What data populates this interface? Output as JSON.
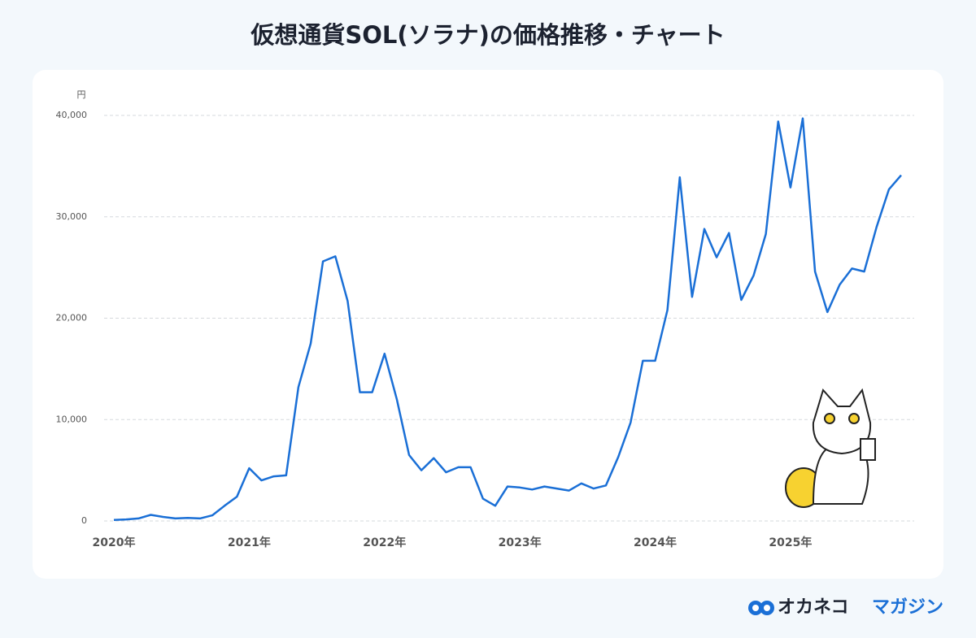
{
  "chart_data": {
    "type": "line",
    "title": "仮想通貨SOL(ソラナ)の価格推移・チャート",
    "y_unit": "円",
    "categories": [
      "2020年",
      null,
      null,
      null,
      null,
      null,
      null,
      null,
      null,
      null,
      null,
      "2021年",
      null,
      null,
      null,
      null,
      null,
      null,
      null,
      null,
      null,
      null,
      "2022年",
      null,
      null,
      null,
      null,
      null,
      null,
      null,
      null,
      null,
      null,
      "2023年",
      null,
      null,
      null,
      null,
      null,
      null,
      null,
      null,
      null,
      null,
      "2024年",
      null,
      null,
      null,
      null,
      null,
      null,
      null,
      null,
      null,
      null,
      "2025年",
      null,
      null,
      null,
      null,
      null,
      null,
      null,
      null,
      null
    ],
    "series": [
      {
        "name": "SOL",
        "color": "#1a6fd6",
        "values": [
          100,
          150,
          250,
          600,
          400,
          250,
          300,
          250,
          550,
          1500,
          2400,
          5200,
          4000,
          4400,
          4500,
          13200,
          17500,
          25600,
          26100,
          21700,
          12700,
          12700,
          16500,
          12000,
          6500,
          5000,
          6200,
          4800,
          5300,
          5300,
          2200,
          1500,
          3400,
          3300,
          3100,
          3400,
          3200,
          3000,
          3700,
          3200,
          3500,
          6300,
          9700,
          15800,
          15800,
          20800,
          33900,
          22100,
          28800,
          26000,
          28400,
          21800,
          24200,
          28300,
          39400,
          32900,
          39700,
          24600,
          20600,
          23300,
          24900,
          24600,
          29000,
          32700,
          34100
        ]
      }
    ],
    "ylim": [
      0,
      40000
    ],
    "yticks": [
      0,
      {
        "value": 10000,
        "label": "10,000"
      },
      {
        "value": 20000,
        "label": "20,000"
      },
      {
        "value": 30000,
        "label": "30,000"
      },
      {
        "value": 40000,
        "label": "40,000"
      }
    ],
    "grid": true
  },
  "brand": {
    "name_main": "オカネコ",
    "name_sub": "マガジン"
  }
}
